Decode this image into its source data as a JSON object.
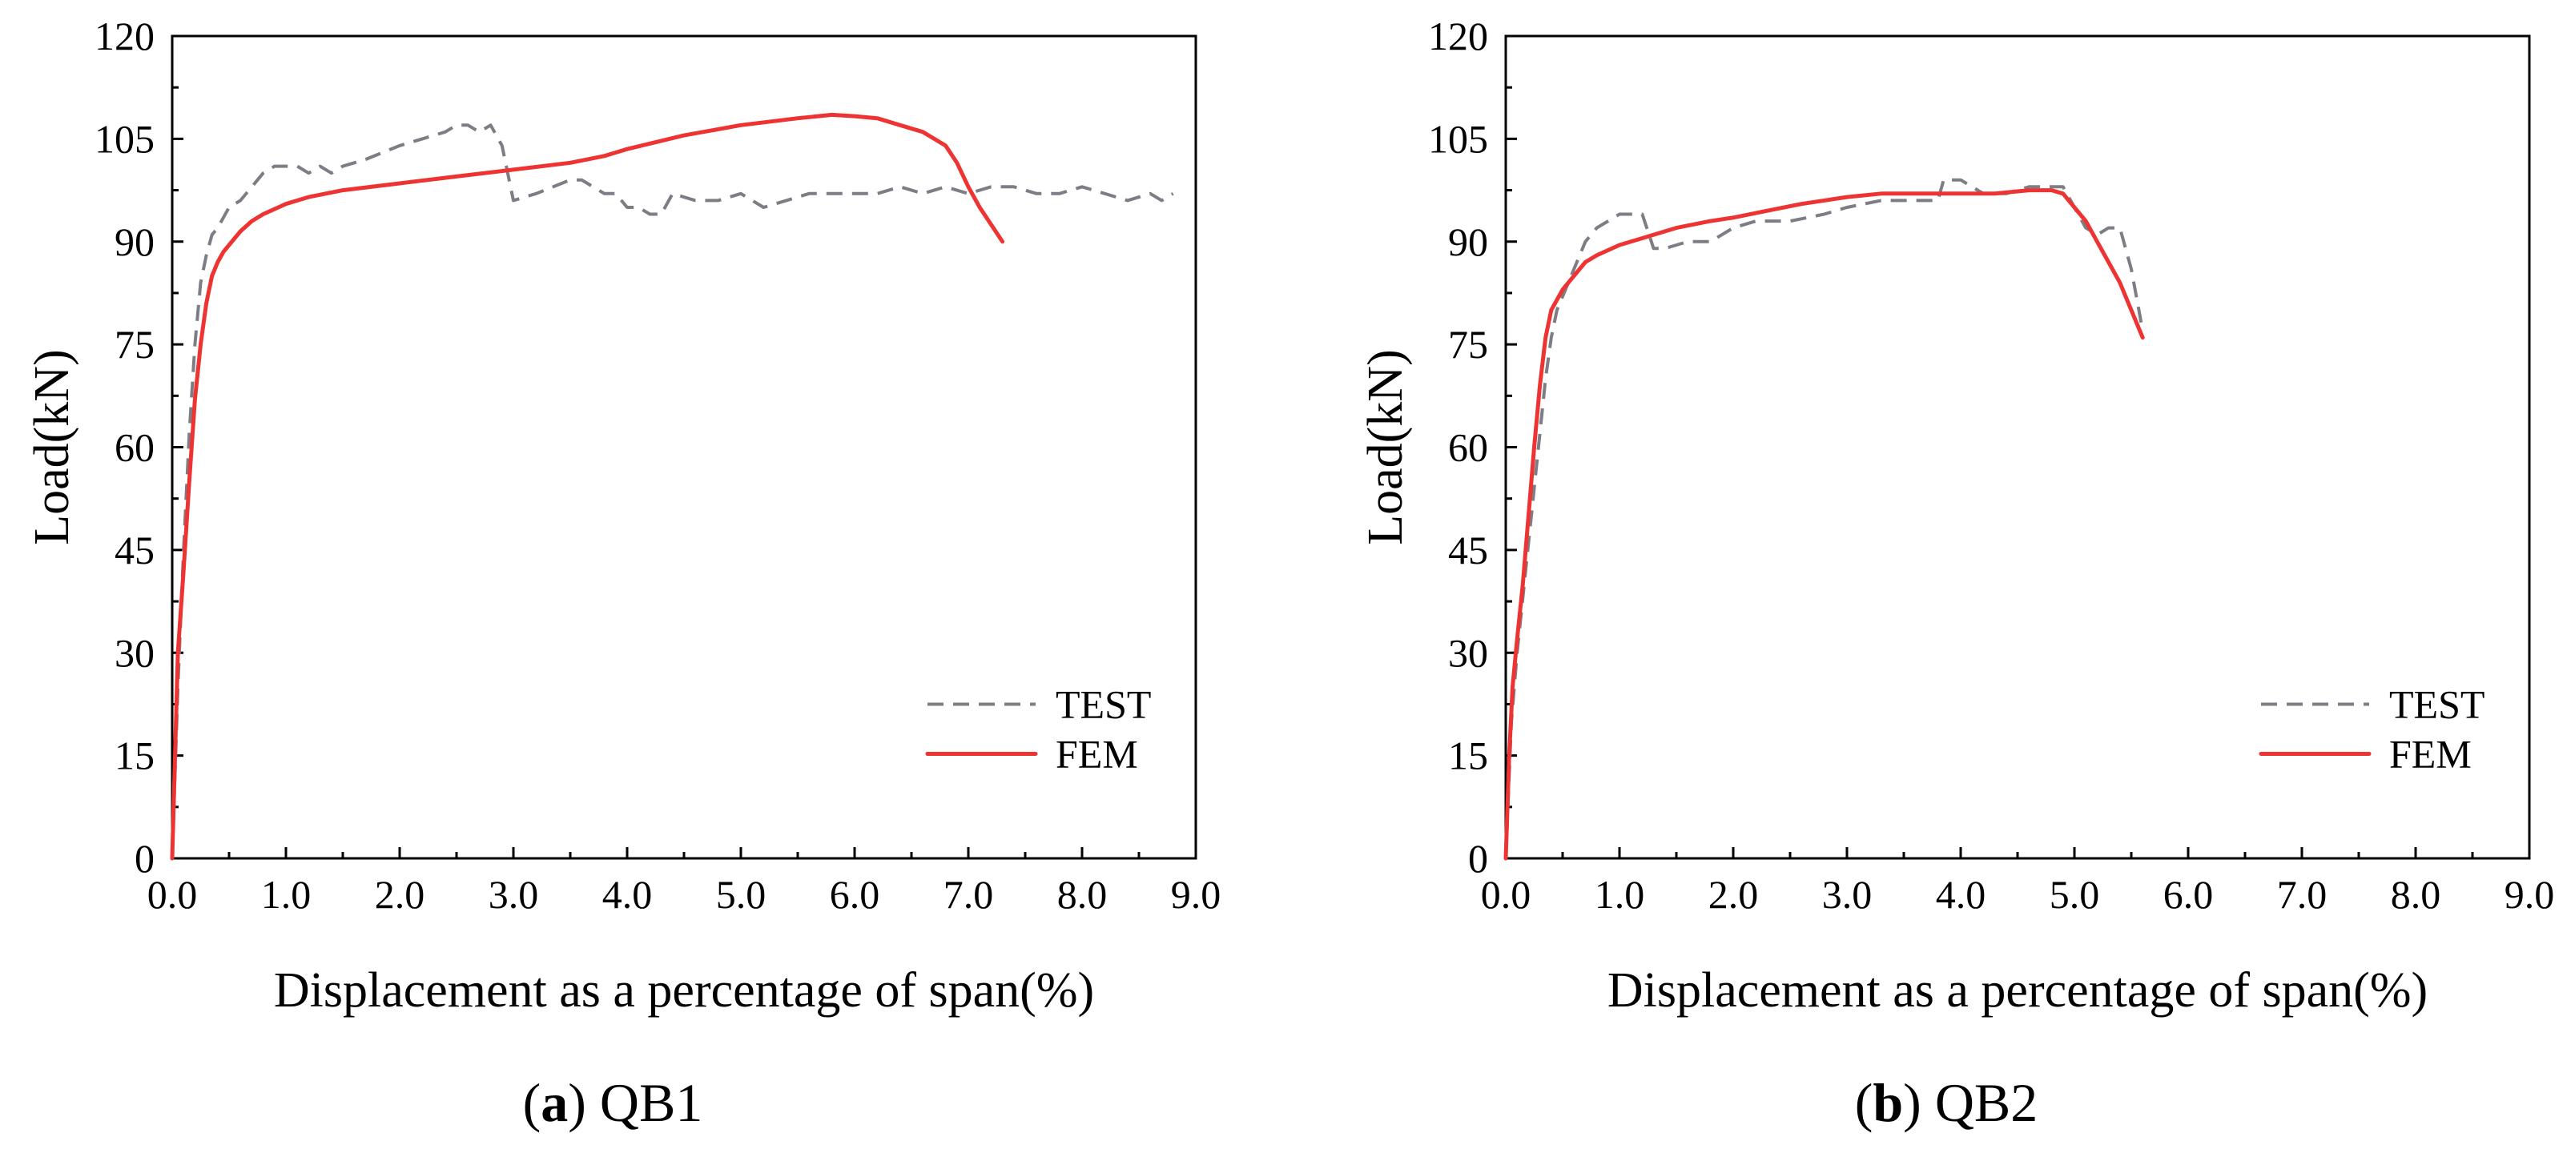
{
  "chart_data": [
    {
      "type": "line",
      "caption_letter": "a",
      "caption_text": "QB1",
      "xlabel": "Displacement as a percentage of span(%)",
      "ylabel": "Load(kN)",
      "xlim": [
        0,
        9
      ],
      "ylim": [
        0,
        120
      ],
      "xticks": [
        "0.0",
        "1.0",
        "2.0",
        "3.0",
        "4.0",
        "5.0",
        "6.0",
        "7.0",
        "8.0",
        "9.0"
      ],
      "yticks": [
        "0",
        "15",
        "30",
        "45",
        "60",
        "75",
        "90",
        "105",
        "120"
      ],
      "legend_position": "lower-right",
      "series": [
        {
          "name": "TEST",
          "color": "#7d7d85",
          "style": "dashed",
          "x": [
            0,
            0.05,
            0.1,
            0.15,
            0.2,
            0.25,
            0.3,
            0.35,
            0.4,
            0.5,
            0.6,
            0.7,
            0.8,
            0.9,
            1.0,
            1.1,
            1.2,
            1.3,
            1.4,
            1.5,
            1.7,
            2.0,
            2.2,
            2.4,
            2.5,
            2.6,
            2.7,
            2.8,
            2.9,
            3.0,
            3.2,
            3.5,
            3.6,
            3.8,
            3.9,
            4.0,
            4.1,
            4.2,
            4.3,
            4.4,
            4.6,
            4.8,
            5.0,
            5.2,
            5.4,
            5.6,
            5.8,
            6.0,
            6.2,
            6.4,
            6.6,
            6.8,
            7.0,
            7.2,
            7.4,
            7.6,
            7.8,
            8.0,
            8.2,
            8.4,
            8.6,
            8.7,
            8.8
          ],
          "y": [
            0,
            25,
            45,
            62,
            75,
            84,
            88,
            91,
            92,
            95,
            96,
            98,
            100,
            101,
            101,
            101,
            100,
            101,
            100,
            101,
            102,
            104,
            105,
            106,
            107,
            107,
            106,
            107,
            104,
            96,
            97,
            99,
            99,
            97,
            97,
            95,
            95,
            94,
            94,
            97,
            96,
            96,
            97,
            95,
            96,
            97,
            97,
            97,
            97,
            98,
            97,
            98,
            97,
            98,
            98,
            97,
            97,
            98,
            97,
            96,
            97,
            96,
            97
          ]
        },
        {
          "name": "FEM",
          "color": "#ee3333",
          "style": "solid",
          "x": [
            0,
            0.05,
            0.1,
            0.15,
            0.2,
            0.25,
            0.3,
            0.35,
            0.4,
            0.45,
            0.5,
            0.6,
            0.7,
            0.8,
            1.0,
            1.2,
            1.5,
            2.0,
            2.5,
            3.0,
            3.5,
            3.8,
            4.0,
            4.5,
            5.0,
            5.5,
            5.8,
            6.0,
            6.2,
            6.4,
            6.6,
            6.8,
            6.9,
            7.0,
            7.1,
            7.2,
            7.3
          ],
          "y": [
            0,
            30,
            42,
            55,
            67,
            75,
            81,
            85,
            87,
            88.5,
            89.5,
            91.5,
            93,
            94,
            95.5,
            96.5,
            97.5,
            98.5,
            99.5,
            100.5,
            101.5,
            102.5,
            103.5,
            105.5,
            107,
            108,
            108.5,
            108.3,
            108,
            107,
            106,
            104,
            101.5,
            98,
            95,
            92.5,
            90
          ]
        }
      ]
    },
    {
      "type": "line",
      "caption_letter": "b",
      "caption_text": "QB2",
      "xlabel": "Displacement as a percentage of span(%)",
      "ylabel": "Load(kN)",
      "xlim": [
        0,
        9
      ],
      "ylim": [
        0,
        120
      ],
      "xticks": [
        "0.0",
        "1.0",
        "2.0",
        "3.0",
        "4.0",
        "5.0",
        "6.0",
        "7.0",
        "8.0",
        "9.0"
      ],
      "yticks": [
        "0",
        "15",
        "30",
        "45",
        "60",
        "75",
        "90",
        "105",
        "120"
      ],
      "legend_position": "lower-right",
      "series": [
        {
          "name": "TEST",
          "color": "#7d7d85",
          "style": "dashed",
          "x": [
            0,
            0.05,
            0.1,
            0.15,
            0.2,
            0.25,
            0.3,
            0.35,
            0.4,
            0.45,
            0.5,
            0.6,
            0.7,
            0.8,
            0.9,
            1.0,
            1.1,
            1.2,
            1.3,
            1.4,
            1.6,
            1.8,
            2.0,
            2.2,
            2.5,
            2.8,
            3.0,
            3.3,
            3.6,
            3.8,
            3.85,
            3.9,
            4.0,
            4.2,
            4.4,
            4.6,
            4.8,
            4.9,
            5.0,
            5.1,
            5.2,
            5.3,
            5.4,
            5.5,
            5.6
          ],
          "y": [
            0,
            20,
            30,
            38,
            46,
            54,
            62,
            70,
            76,
            80,
            82,
            86,
            90,
            92,
            93,
            94,
            94,
            94,
            89,
            89,
            90,
            90,
            92,
            93,
            93,
            94,
            95,
            96,
            96,
            96,
            99,
            99,
            99,
            97,
            97,
            98,
            98,
            98,
            95,
            92,
            91,
            92,
            92,
            86,
            77
          ]
        },
        {
          "name": "FEM",
          "color": "#ee3333",
          "style": "solid",
          "x": [
            0,
            0.03,
            0.06,
            0.1,
            0.15,
            0.2,
            0.25,
            0.3,
            0.35,
            0.4,
            0.45,
            0.5,
            0.6,
            0.7,
            0.8,
            1.0,
            1.2,
            1.5,
            1.8,
            2.0,
            2.3,
            2.6,
            3.0,
            3.3,
            3.6,
            4.0,
            4.3,
            4.6,
            4.8,
            4.9,
            5.0,
            5.1,
            5.2,
            5.3,
            5.4,
            5.5,
            5.6
          ],
          "y": [
            0,
            15,
            25,
            32,
            40,
            50,
            60,
            69,
            76,
            80,
            81.5,
            83,
            85,
            87,
            88,
            89.5,
            90.5,
            92,
            93,
            93.5,
            94.5,
            95.5,
            96.5,
            97,
            97,
            97,
            97,
            97.5,
            97.5,
            97,
            95,
            93,
            90,
            87,
            84,
            80,
            76
          ]
        }
      ]
    }
  ]
}
